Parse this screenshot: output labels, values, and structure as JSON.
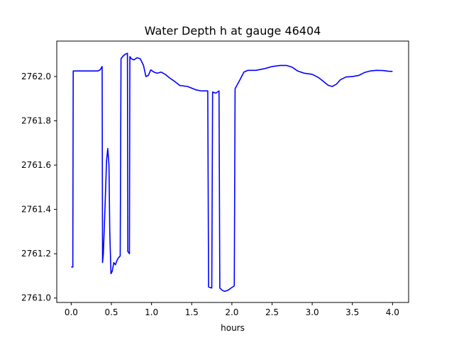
{
  "chart_data": {
    "type": "line",
    "title": "Water Depth h at gauge 46404",
    "xlabel": "hours",
    "ylabel": "",
    "xlim": [
      -0.18,
      4.2
    ],
    "ylim": [
      2760.98,
      2762.16
    ],
    "x_ticks": [
      0.0,
      0.5,
      1.0,
      1.5,
      2.0,
      2.5,
      3.0,
      3.5,
      4.0
    ],
    "x_tick_labels": [
      "0.0",
      "0.5",
      "1.0",
      "1.5",
      "2.0",
      "2.5",
      "3.0",
      "3.5",
      "4.0"
    ],
    "y_ticks": [
      2761.0,
      2761.2,
      2761.4,
      2761.6,
      2761.8,
      2762.0
    ],
    "y_tick_labels": [
      "2761.0",
      "2761.2",
      "2761.4",
      "2761.6",
      "2761.8",
      "2762.0"
    ],
    "grid": false,
    "series": [
      {
        "color": "#0000ff",
        "points": [
          [
            0.0,
            2761.14
          ],
          [
            0.02,
            2761.14
          ],
          [
            0.025,
            2762.025
          ],
          [
            0.1,
            2762.025
          ],
          [
            0.2,
            2762.025
          ],
          [
            0.3,
            2762.025
          ],
          [
            0.33,
            2762.025
          ],
          [
            0.36,
            2762.03
          ],
          [
            0.385,
            2762.045
          ],
          [
            0.39,
            2761.16
          ],
          [
            0.4,
            2761.2
          ],
          [
            0.42,
            2761.4
          ],
          [
            0.44,
            2761.62
          ],
          [
            0.455,
            2761.675
          ],
          [
            0.47,
            2761.6
          ],
          [
            0.48,
            2761.3
          ],
          [
            0.495,
            2761.11
          ],
          [
            0.51,
            2761.12
          ],
          [
            0.53,
            2761.16
          ],
          [
            0.55,
            2761.15
          ],
          [
            0.57,
            2761.17
          ],
          [
            0.585,
            2761.18
          ],
          [
            0.61,
            2761.19
          ],
          [
            0.62,
            2762.08
          ],
          [
            0.64,
            2762.09
          ],
          [
            0.67,
            2762.1
          ],
          [
            0.7,
            2762.105
          ],
          [
            0.705,
            2761.21
          ],
          [
            0.725,
            2761.2
          ],
          [
            0.73,
            2762.09
          ],
          [
            0.75,
            2762.08
          ],
          [
            0.78,
            2762.075
          ],
          [
            0.82,
            2762.085
          ],
          [
            0.86,
            2762.08
          ],
          [
            0.9,
            2762.05
          ],
          [
            0.93,
            2762.0
          ],
          [
            0.96,
            2762.005
          ],
          [
            0.99,
            2762.03
          ],
          [
            1.03,
            2762.02
          ],
          [
            1.07,
            2762.015
          ],
          [
            1.12,
            2762.02
          ],
          [
            1.17,
            2762.01
          ],
          [
            1.22,
            2761.995
          ],
          [
            1.28,
            2761.98
          ],
          [
            1.35,
            2761.96
          ],
          [
            1.45,
            2761.955
          ],
          [
            1.55,
            2761.94
          ],
          [
            1.62,
            2761.935
          ],
          [
            1.7,
            2761.935
          ],
          [
            1.71,
            2761.05
          ],
          [
            1.75,
            2761.045
          ],
          [
            1.76,
            2761.93
          ],
          [
            1.8,
            2761.925
          ],
          [
            1.84,
            2761.935
          ],
          [
            1.85,
            2761.045
          ],
          [
            1.88,
            2761.035
          ],
          [
            1.91,
            2761.03
          ],
          [
            1.95,
            2761.035
          ],
          [
            2.01,
            2761.05
          ],
          [
            2.03,
            2761.055
          ],
          [
            2.04,
            2761.945
          ],
          [
            2.1,
            2761.985
          ],
          [
            2.15,
            2762.02
          ],
          [
            2.2,
            2762.028
          ],
          [
            2.3,
            2762.028
          ],
          [
            2.4,
            2762.035
          ],
          [
            2.5,
            2762.045
          ],
          [
            2.6,
            2762.05
          ],
          [
            2.68,
            2762.05
          ],
          [
            2.75,
            2762.042
          ],
          [
            2.82,
            2762.025
          ],
          [
            2.9,
            2762.015
          ],
          [
            3.0,
            2762.01
          ],
          [
            3.08,
            2761.995
          ],
          [
            3.15,
            2761.975
          ],
          [
            3.2,
            2761.96
          ],
          [
            3.25,
            2761.955
          ],
          [
            3.3,
            2761.965
          ],
          [
            3.35,
            2761.985
          ],
          [
            3.42,
            2761.998
          ],
          [
            3.5,
            2762.0
          ],
          [
            3.58,
            2762.005
          ],
          [
            3.65,
            2762.018
          ],
          [
            3.72,
            2762.025
          ],
          [
            3.8,
            2762.028
          ],
          [
            3.88,
            2762.027
          ],
          [
            3.95,
            2762.024
          ],
          [
            4.0,
            2762.023
          ]
        ]
      }
    ]
  }
}
